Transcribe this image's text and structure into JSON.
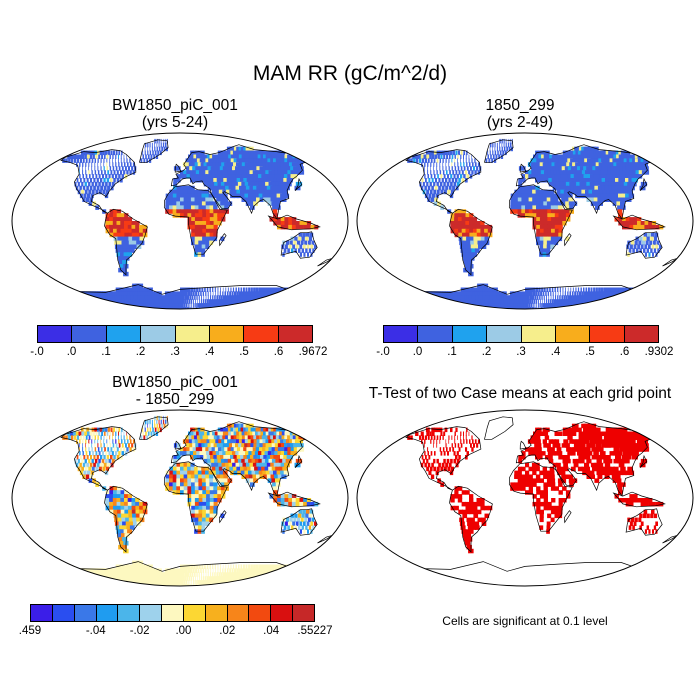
{
  "figure": {
    "title": "MAM RR (gC/m^2/d)"
  },
  "panels": {
    "top_left": {
      "title_line1": "BW1850_piC_001",
      "title_line2": "(yrs 5-24)"
    },
    "top_right": {
      "title_line1": "1850_299",
      "title_line2": "(yrs 2-49)"
    },
    "bottom_left": {
      "title_line1": "BW1850_piC_001",
      "title_line2": "- 1850_299"
    },
    "bottom_right": {
      "title_line1": "T-Test of two Case means at each grid point"
    }
  },
  "colorbars": {
    "top_left": {
      "colors": [
        "#3b2ee6",
        "#3f62e0",
        "#1fa2ee",
        "#9ccbe6",
        "#f6ee8c",
        "#f8ad1c",
        "#f73b14",
        "#cc2a2a"
      ],
      "labels": [
        "-.0",
        ".0",
        ".1",
        ".2",
        ".3",
        ".4",
        ".5",
        ".6",
        ".9672"
      ]
    },
    "top_right": {
      "colors": [
        "#3b2ee6",
        "#3f62e0",
        "#1fa2ee",
        "#9ccbe6",
        "#f6ee8c",
        "#f8ad1c",
        "#f73b14",
        "#cc2a2a"
      ],
      "labels": [
        "-.0",
        ".0",
        ".1",
        ".2",
        ".3",
        ".4",
        ".5",
        ".6",
        ".9302"
      ]
    },
    "bottom_left": {
      "colors": [
        "#3b1ee8",
        "#2a4ef0",
        "#3a78e8",
        "#1f9cf0",
        "#4bb5ea",
        "#9ed2ec",
        "#fdf8c0",
        "#fcd733",
        "#f7b01e",
        "#f7851a",
        "#f24a10",
        "#d91010",
        "#c62828"
      ],
      "labels": [
        ".459",
        "-.04",
        "-.02",
        ".00",
        ".02",
        ".04",
        ".55227"
      ]
    }
  },
  "bottom_right_note": "Cells are significant at 0.1 level",
  "map_colors": {
    "ocean": "#ffffff",
    "low": "#3f62e0",
    "high": "#cc2a2a",
    "diff_neutral": "#fdf8c0",
    "significant": "#ee0000"
  }
}
